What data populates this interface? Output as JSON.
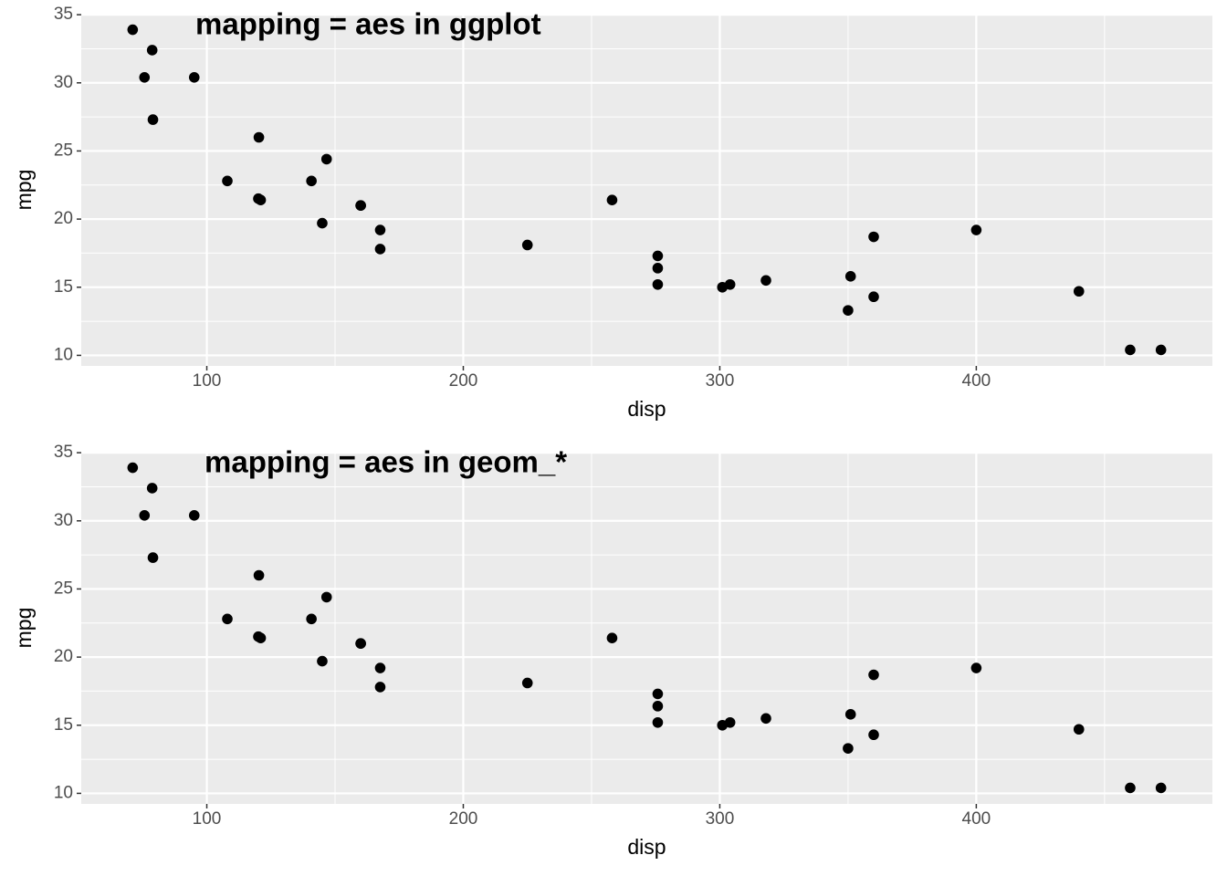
{
  "chart_data": [
    {
      "type": "scatter",
      "annotation": "mapping = aes in ggplot",
      "xlabel": "disp",
      "ylabel": "mpg",
      "x": [
        160,
        160,
        108,
        258,
        360,
        225,
        360,
        146.7,
        140.8,
        167.6,
        167.6,
        275.8,
        275.8,
        275.8,
        472,
        460,
        440,
        78.7,
        75.7,
        71.1,
        120.1,
        318,
        304,
        350,
        400,
        79,
        120.3,
        95.1,
        351,
        145,
        301,
        121
      ],
      "y": [
        21,
        21,
        22.8,
        21.4,
        18.7,
        18.1,
        14.3,
        24.4,
        22.8,
        19.2,
        17.8,
        16.4,
        17.3,
        15.2,
        10.4,
        10.4,
        14.7,
        32.4,
        30.4,
        33.9,
        21.5,
        15.5,
        15.2,
        13.3,
        19.2,
        27.3,
        26,
        30.4,
        15.8,
        19.7,
        15,
        21.4
      ],
      "color": "#000000",
      "xlim": [
        51.05,
        492.05
      ],
      "ylim": [
        9.225,
        35.075
      ],
      "xticks": [
        100,
        200,
        300,
        400
      ],
      "yticks": [
        10,
        15,
        20,
        25,
        30,
        35
      ],
      "x_minor_grid": [
        150,
        250,
        350,
        450
      ],
      "y_minor_grid": [
        12.5,
        17.5,
        22.5,
        27.5,
        32.5
      ],
      "grid": true
    },
    {
      "type": "scatter",
      "annotation": "mapping = aes in geom_*",
      "xlabel": "disp",
      "ylabel": "mpg",
      "x": [
        160,
        160,
        108,
        258,
        360,
        225,
        360,
        146.7,
        140.8,
        167.6,
        167.6,
        275.8,
        275.8,
        275.8,
        472,
        460,
        440,
        78.7,
        75.7,
        71.1,
        120.1,
        318,
        304,
        350,
        400,
        79,
        120.3,
        95.1,
        351,
        145,
        301,
        121
      ],
      "y": [
        21,
        21,
        22.8,
        21.4,
        18.7,
        18.1,
        14.3,
        24.4,
        22.8,
        19.2,
        17.8,
        16.4,
        17.3,
        15.2,
        10.4,
        10.4,
        14.7,
        32.4,
        30.4,
        33.9,
        21.5,
        15.5,
        15.2,
        13.3,
        19.2,
        27.3,
        26,
        30.4,
        15.8,
        19.7,
        15,
        21.4
      ],
      "color": "#000000",
      "xlim": [
        51.05,
        492.05
      ],
      "ylim": [
        9.225,
        35.075
      ],
      "xticks": [
        100,
        200,
        300,
        400
      ],
      "yticks": [
        10,
        15,
        20,
        25,
        30,
        35
      ],
      "x_minor_grid": [
        150,
        250,
        350,
        450
      ],
      "y_minor_grid": [
        12.5,
        17.5,
        22.5,
        27.5,
        32.5
      ],
      "grid": true
    }
  ]
}
